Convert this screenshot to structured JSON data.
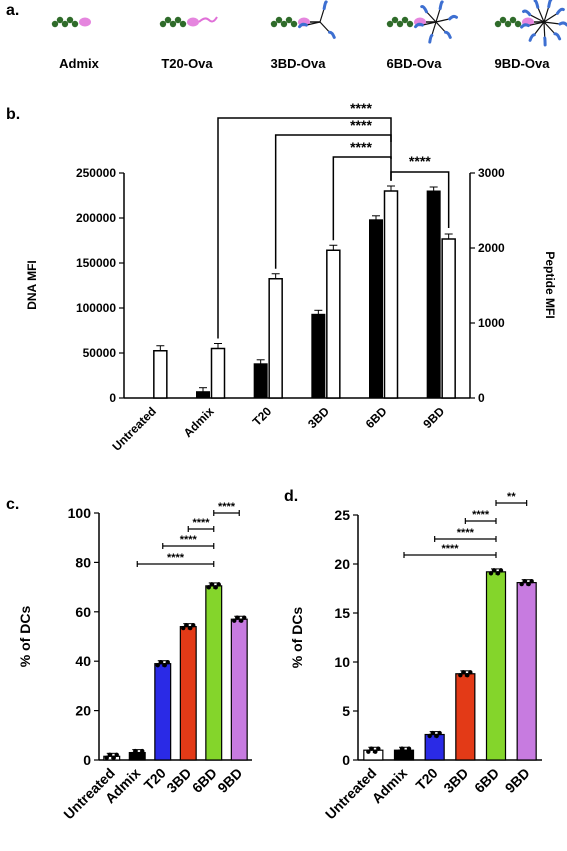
{
  "panels": {
    "a": "a.",
    "b": "b.",
    "c": "c.",
    "d": "d."
  },
  "constructs": [
    "Admix",
    "T20-Ova",
    "3BD-Ova",
    "6BD-Ova",
    "9BD-Ova"
  ],
  "colors": {
    "dna_bar": "#000000",
    "peptide_bar": "#ffffff",
    "untreated": "#ffffff",
    "admix": "#000000",
    "t20": "#2a2ae6",
    "3bd": "#e33a17",
    "6bd": "#84d52b",
    "9bd": "#c77be0",
    "dna_strand": "#2f6b2a",
    "peptide": "#e070d8",
    "branch": "#3d6fd1"
  },
  "chart_data": [
    {
      "id": "b",
      "type": "bar",
      "ylabel": "DNA MFI",
      "ylabel_right": "Peptide MFI",
      "categories": [
        "Untreated",
        "Admix",
        "T20",
        "3BD",
        "6BD",
        "9BD"
      ],
      "ylim": [
        0,
        250000
      ],
      "yticks": [
        "0",
        "50000",
        "100000",
        "150000",
        "200000",
        "250000"
      ],
      "ylim_right": [
        0,
        3000
      ],
      "yticks_right": [
        "0",
        "1000",
        "2000",
        "3000"
      ],
      "series": [
        {
          "name": "DNA MFI",
          "axis": "left",
          "values": [
            0,
            7000,
            38000,
            93000,
            198000,
            230000
          ]
        },
        {
          "name": "Peptide MFI",
          "axis": "right",
          "values": [
            630,
            660,
            1590,
            1970,
            2760,
            2120
          ]
        }
      ],
      "significance": [
        {
          "from": "Admix",
          "to": "6BD",
          "label": "****"
        },
        {
          "from": "T20",
          "to": "6BD",
          "label": "****"
        },
        {
          "from": "3BD",
          "to": "6BD",
          "label": "****"
        },
        {
          "from": "6BD",
          "to": "9BD",
          "label": "****"
        }
      ]
    },
    {
      "id": "c",
      "type": "bar",
      "ylabel": "% of DCs",
      "categories": [
        "Untreated",
        "Admix",
        "T20",
        "3BD",
        "6BD",
        "9BD"
      ],
      "ylim": [
        0,
        100
      ],
      "yticks": [
        "0",
        "20",
        "40",
        "60",
        "80",
        "100"
      ],
      "values": [
        1.5,
        3,
        39,
        54,
        70.5,
        57
      ],
      "significance": [
        {
          "from": "Admix",
          "to": "6BD",
          "label": "****"
        },
        {
          "from": "T20",
          "to": "6BD",
          "label": "****"
        },
        {
          "from": "3BD",
          "to": "6BD",
          "label": "****"
        },
        {
          "from": "6BD",
          "to": "9BD",
          "label": "****"
        }
      ]
    },
    {
      "id": "d",
      "type": "bar",
      "ylabel": "% of DCs",
      "categories": [
        "Untreated",
        "Admix",
        "T20",
        "3BD",
        "6BD",
        "9BD"
      ],
      "ylim": [
        0,
        25
      ],
      "yticks": [
        "0",
        "5",
        "10",
        "15",
        "20",
        "25"
      ],
      "values": [
        1.0,
        1.0,
        2.6,
        8.8,
        19.2,
        18.1
      ],
      "significance": [
        {
          "from": "Admix",
          "to": "6BD",
          "label": "****"
        },
        {
          "from": "T20",
          "to": "6BD",
          "label": "****"
        },
        {
          "from": "3BD",
          "to": "6BD",
          "label": "****"
        },
        {
          "from": "6BD",
          "to": "9BD",
          "label": "**"
        }
      ]
    }
  ]
}
